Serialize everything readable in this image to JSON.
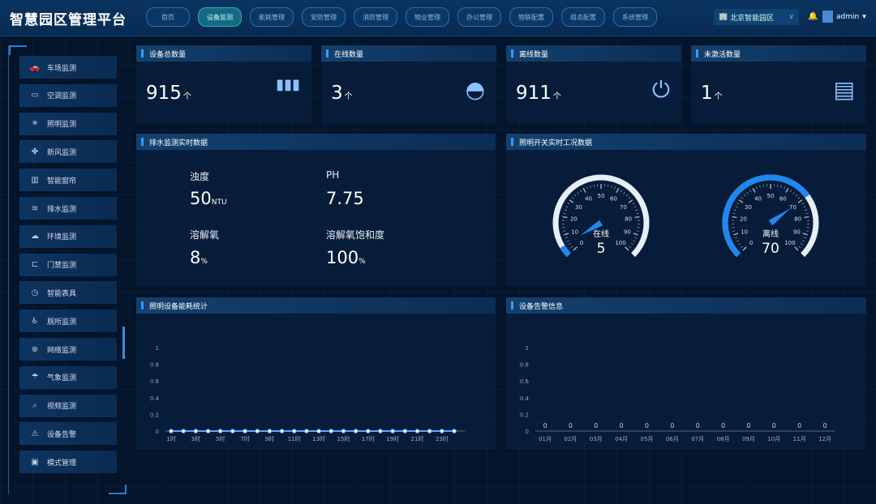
{
  "header": {
    "title": "智慧园区管理平台",
    "nav": [
      "首页",
      "设备监测",
      "能耗管理",
      "安防管理",
      "消防管理",
      "物业管理",
      "办公管理",
      "物联配置",
      "组态配置",
      "系统管理"
    ],
    "active_nav": 1,
    "park": "北京智能园区",
    "user": "admin"
  },
  "sidebar": {
    "items": [
      {
        "label": "车场监测",
        "icon": "car-icon",
        "glyph": "🚗"
      },
      {
        "label": "空调监测",
        "icon": "air-conditioner-icon",
        "glyph": "▭"
      },
      {
        "label": "照明监测",
        "icon": "light-icon",
        "glyph": "☀"
      },
      {
        "label": "新风监测",
        "icon": "fan-icon",
        "glyph": "✤"
      },
      {
        "label": "智能窗帘",
        "icon": "curtain-icon",
        "glyph": "▥"
      },
      {
        "label": "排水监测",
        "icon": "drain-icon",
        "glyph": "≋"
      },
      {
        "label": "环境监测",
        "icon": "environment-icon",
        "glyph": "☁"
      },
      {
        "label": "门禁监测",
        "icon": "door-icon",
        "glyph": "⊏"
      },
      {
        "label": "智能表具",
        "icon": "meter-icon",
        "glyph": "◷"
      },
      {
        "label": "厕所监测",
        "icon": "toilet-icon",
        "glyph": "♿"
      },
      {
        "label": "网络监测",
        "icon": "network-icon",
        "glyph": "⊕"
      },
      {
        "label": "气象监测",
        "icon": "weather-icon",
        "glyph": "☂"
      },
      {
        "label": "视频监测",
        "icon": "camera-icon",
        "glyph": "⌕"
      },
      {
        "label": "设备告警",
        "icon": "alarm-icon",
        "glyph": "⚠"
      },
      {
        "label": "模式管理",
        "icon": "mode-icon",
        "glyph": "▣"
      }
    ]
  },
  "stats": [
    {
      "title": "设备总数量",
      "value": "915",
      "unit": "个",
      "icon": "device-icon",
      "glyph": "▮▮▮"
    },
    {
      "title": "在线数量",
      "value": "3",
      "unit": "个",
      "icon": "online-icon",
      "glyph": "◓"
    },
    {
      "title": "离线数量",
      "value": "911",
      "unit": "个",
      "icon": "offline-icon",
      "glyph": "⏻"
    },
    {
      "title": "未激活数量",
      "value": "1",
      "unit": "个",
      "icon": "inactive-icon",
      "glyph": "▤"
    }
  ],
  "drain": {
    "title": "排水监测实时数据",
    "items": [
      {
        "label": "浊度",
        "value": "50",
        "unit": "NTU"
      },
      {
        "label": "PH",
        "value": "7.75",
        "unit": ""
      },
      {
        "label": "溶解氧",
        "value": "8",
        "unit": "%"
      },
      {
        "label": "溶解氧饱和度",
        "value": "100",
        "unit": "%"
      }
    ]
  },
  "lighting": {
    "title": "照明开关实时工况数据",
    "gauges": [
      {
        "label": "在线",
        "value": 5
      },
      {
        "label": "离线",
        "value": 70
      }
    ],
    "ticks": [
      "0",
      "10",
      "20",
      "30",
      "40",
      "50",
      "60",
      "70",
      "80",
      "90",
      "100"
    ],
    "max": 100,
    "colors": {
      "fill": "#1e88f0",
      "track": "#e6eef8"
    }
  },
  "chart_data": [
    {
      "type": "line",
      "title": "照明设备能耗统计",
      "x": [
        "1时",
        "2时",
        "3时",
        "4时",
        "5时",
        "6时",
        "7时",
        "8时",
        "9时",
        "10时",
        "11时",
        "12时",
        "13时",
        "14时",
        "15时",
        "16时",
        "17时",
        "18时",
        "19时",
        "20时",
        "21时",
        "22时",
        "23时",
        "24时"
      ],
      "x_tick_labels": [
        "1时",
        "3时",
        "5时",
        "7时",
        "9时",
        "11时",
        "13时",
        "15时",
        "17时",
        "19时",
        "21时",
        "23时"
      ],
      "values": [
        0,
        0,
        0,
        0,
        0,
        0,
        0,
        0,
        0,
        0,
        0,
        0,
        0,
        0,
        0,
        0,
        0,
        0,
        0,
        0,
        0,
        0,
        0,
        0
      ],
      "y_ticks": [
        "0",
        "0.2",
        "0.4",
        "0.6",
        "0.8",
        "1"
      ],
      "ylim": [
        0,
        1
      ],
      "color": "#5aa8ff"
    },
    {
      "type": "bar",
      "title": "设备告警信息",
      "categories": [
        "01月",
        "02月",
        "03月",
        "04月",
        "05月",
        "06月",
        "07月",
        "08月",
        "09月",
        "10月",
        "11月",
        "12月"
      ],
      "values": [
        0,
        0,
        0,
        0,
        0,
        0,
        0,
        0,
        0,
        0,
        0,
        0
      ],
      "y_ticks": [
        "0",
        "0.2",
        "0.4",
        "0.6",
        "0.8",
        "1"
      ],
      "ylim": [
        0,
        1
      ]
    }
  ]
}
